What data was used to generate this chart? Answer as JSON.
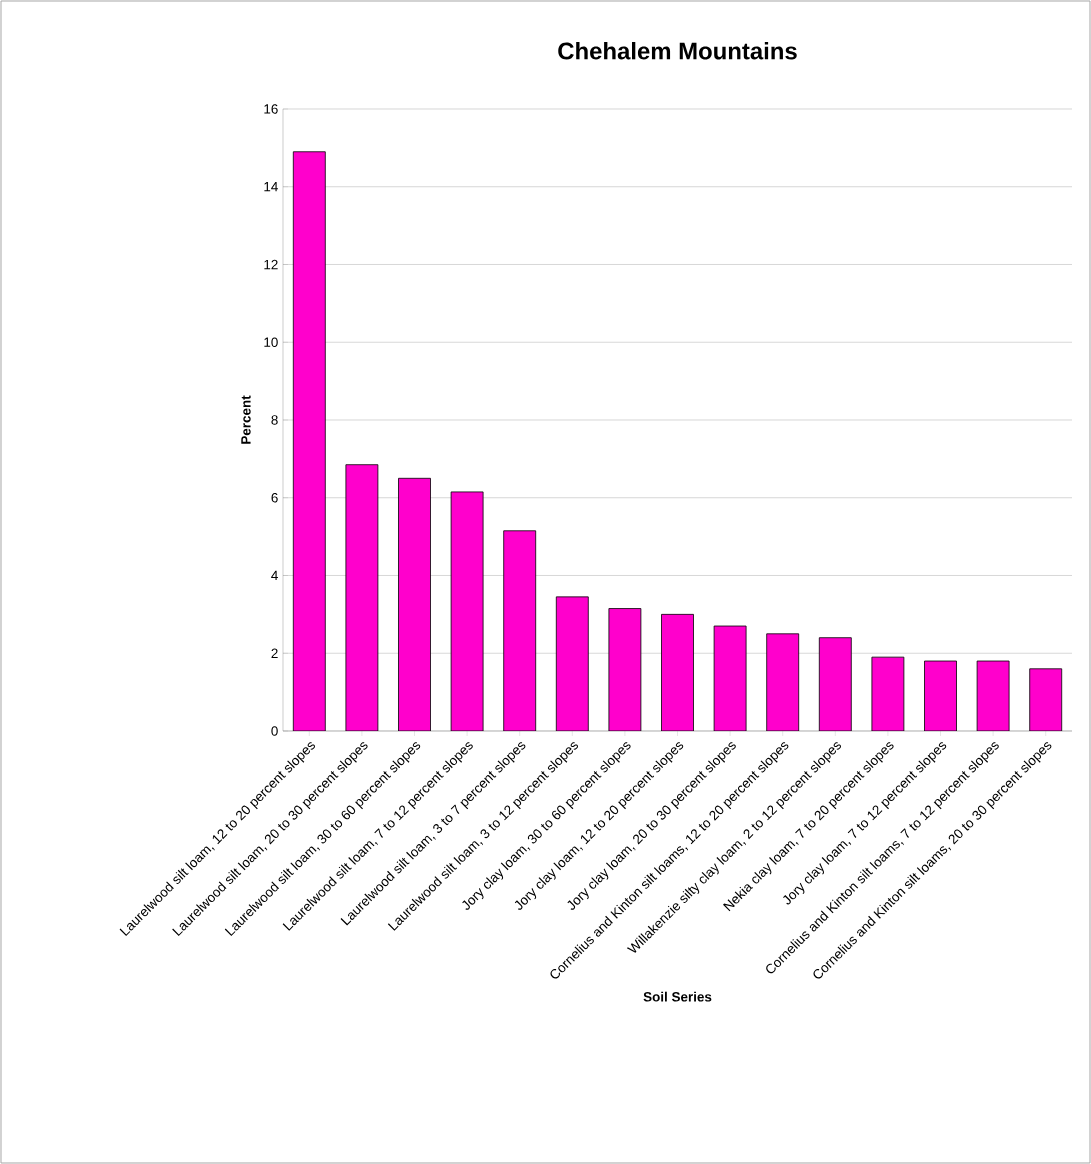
{
  "chart_data": {
    "type": "bar",
    "title": "Chehalem Mountains",
    "xlabel": "Soil Series",
    "ylabel": "Percent",
    "categories": [
      "Laurelwood silt loam, 12 to 20 percent slopes",
      "Laurelwood silt loam, 20 to 30 percent slopes",
      "Laurelwood silt loam, 30 to 60 percent slopes",
      "Laurelwood silt loam, 7 to 12 percent slopes",
      "Laurelwood silt loam, 3 to 7 percent slopes",
      "Laurelwood silt loam, 3 to 12 percent slopes",
      "Jory clay loam, 30 to 60 percent slopes",
      "Jory clay loam, 12 to 20 percent slopes",
      "Jory clay loam, 20 to 30 percent slopes",
      "Cornelius and Kinton silt loams, 12 to 20 percent slopes",
      "Willakenzie silty clay loam, 2 to 12 percent slopes",
      "Nekia clay loam, 7 to 20 percent slopes",
      "Jory clay loam, 7 to 12 percent slopes",
      "Cornelius and Kinton silt loams, 7 to 12 percent slopes",
      "Cornelius and Kinton silt loams, 20 to 30 percent slopes"
    ],
    "values": [
      14.9,
      6.85,
      6.5,
      6.15,
      5.15,
      3.45,
      3.15,
      3.0,
      2.7,
      2.5,
      2.4,
      1.9,
      1.8,
      1.8,
      1.6
    ],
    "color": "#ff00cc",
    "ylim": [
      0,
      16
    ],
    "yticks": [
      0,
      2,
      4,
      6,
      8,
      10,
      12,
      14,
      16
    ],
    "grid": "y"
  }
}
